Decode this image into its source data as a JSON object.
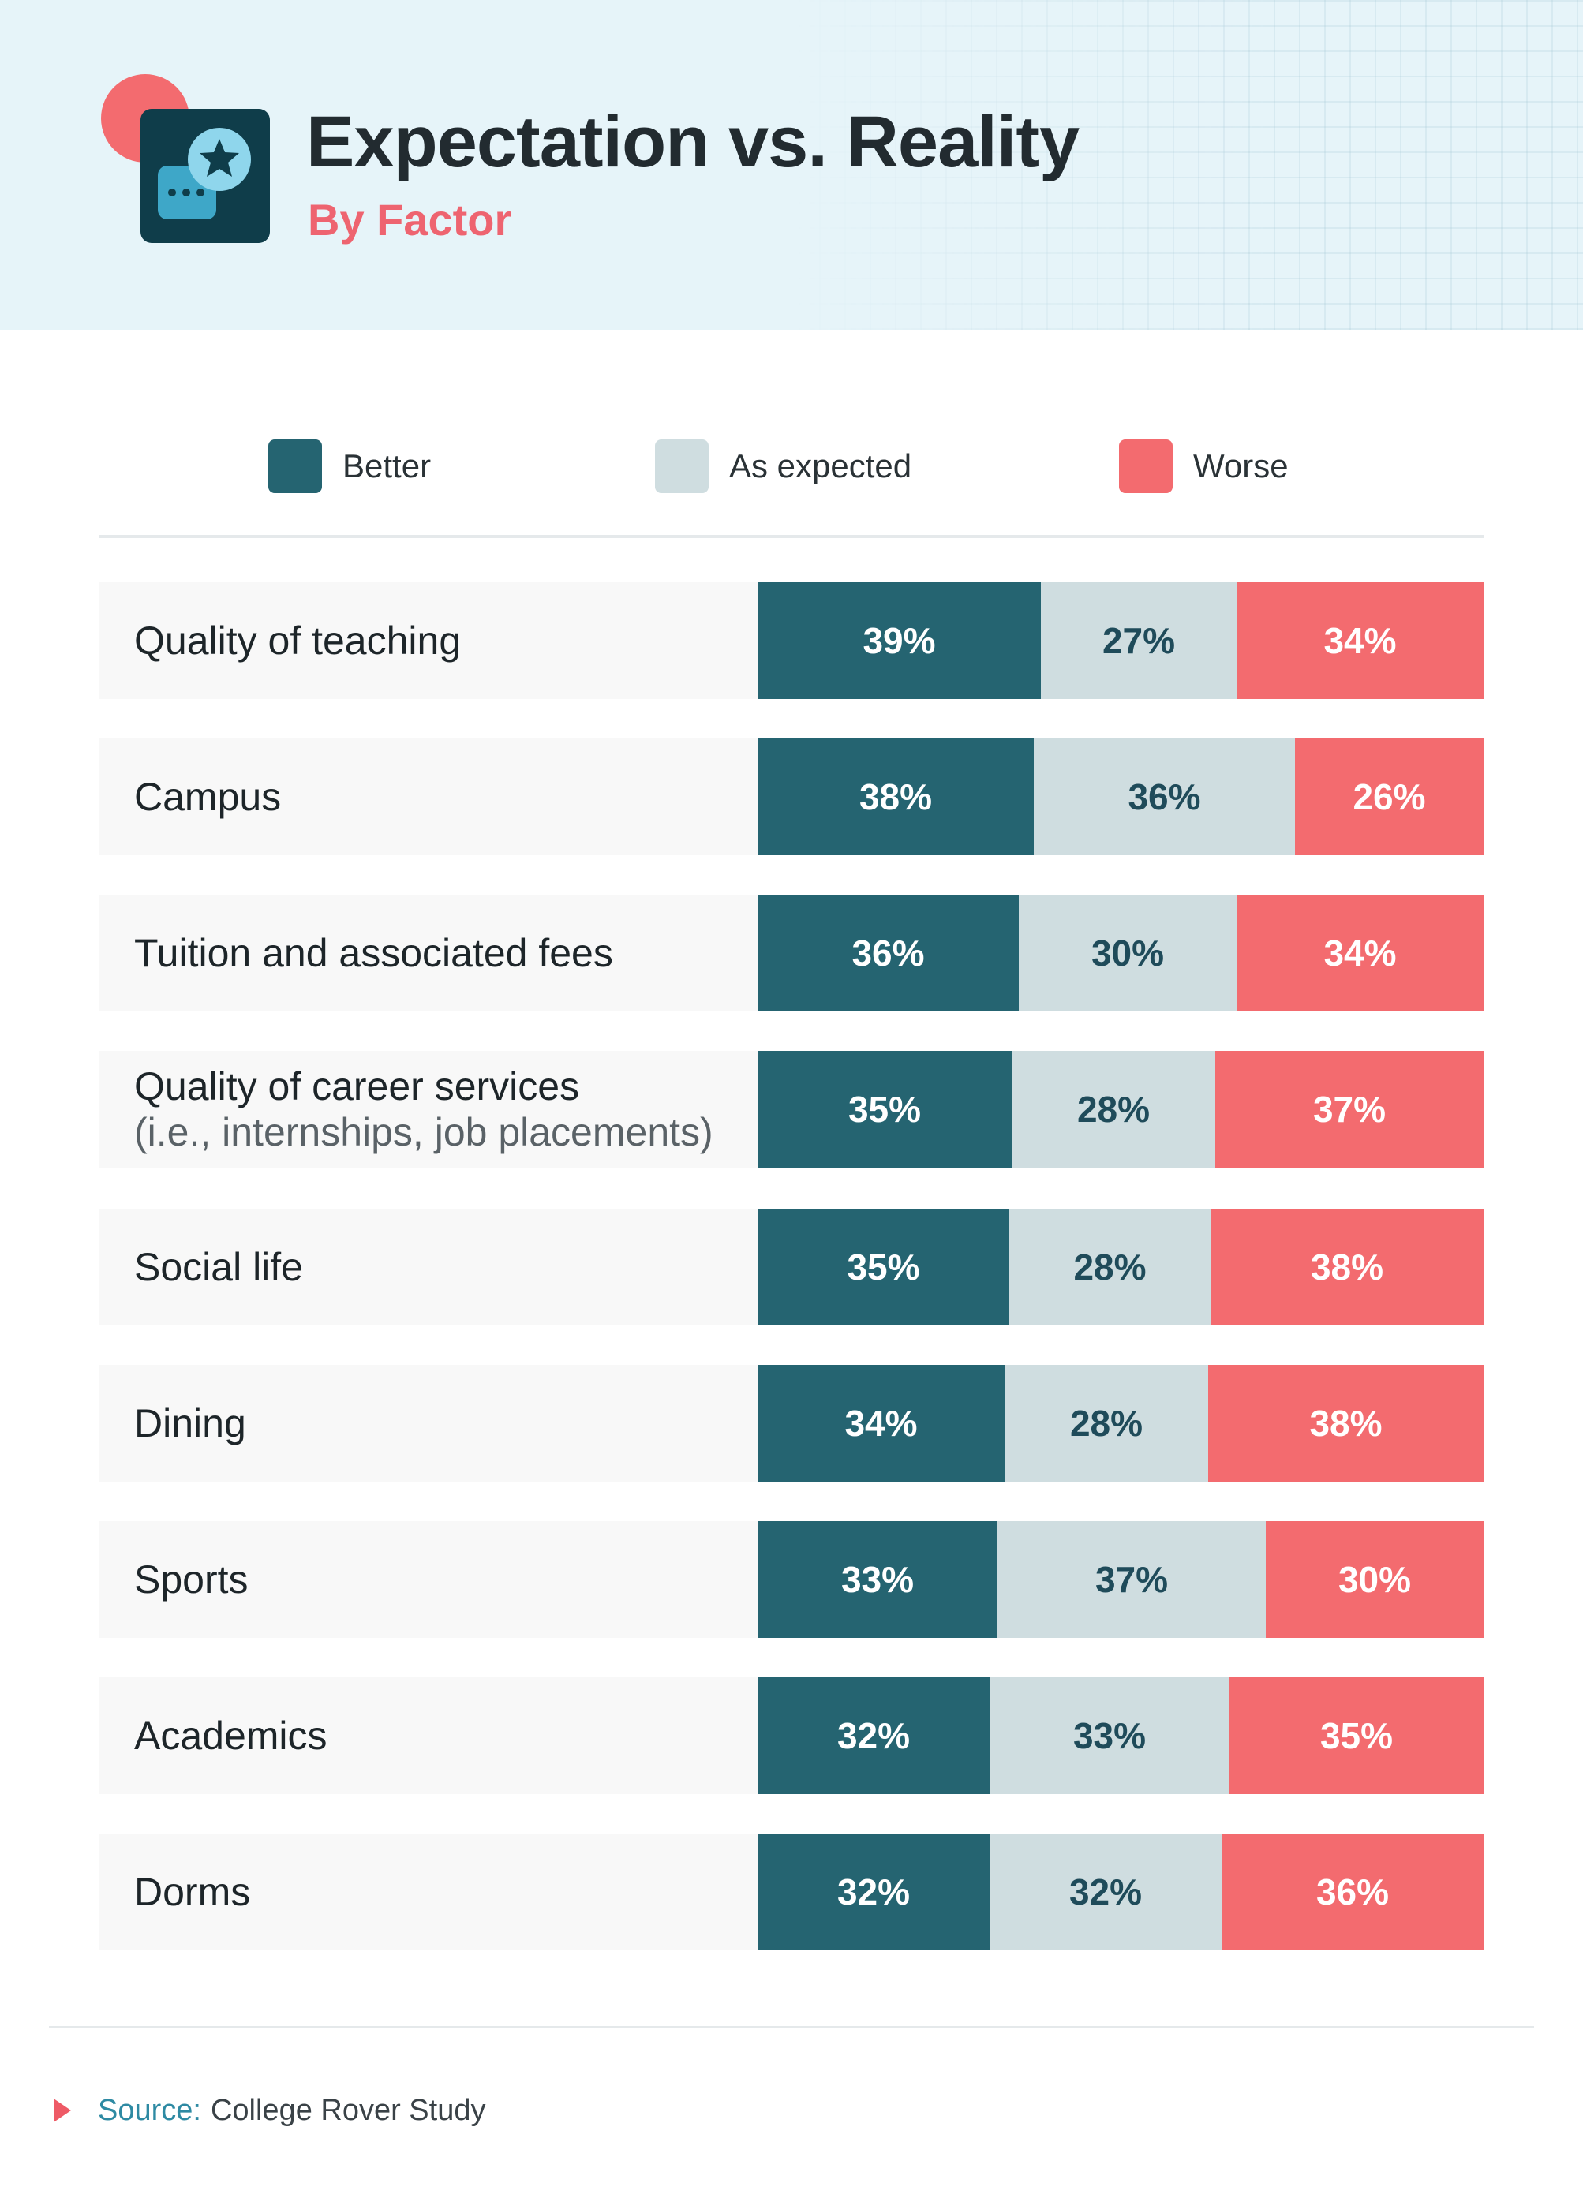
{
  "header": {
    "title": "Expectation vs. Reality",
    "subtitle": "By Factor",
    "logo_icon": "chat-star-icon"
  },
  "colors": {
    "better": "#256471",
    "as_expected": "#cfdde0",
    "worse": "#f36b6f",
    "accent": "#ee6470",
    "header_bg": "#e6f4f9"
  },
  "legend": [
    {
      "label": "Better",
      "key": "better"
    },
    {
      "label": "As expected",
      "key": "expected"
    },
    {
      "label": "Worse",
      "key": "worse"
    }
  ],
  "chart_data": {
    "type": "bar",
    "orientation": "horizontal",
    "stacked": true,
    "title": "Expectation vs. Reality",
    "subtitle": "By Factor",
    "categories": [
      {
        "label": "Quality of teaching",
        "sublabel": ""
      },
      {
        "label": "Campus",
        "sublabel": ""
      },
      {
        "label": "Tuition and associated fees",
        "sublabel": ""
      },
      {
        "label": "Quality of career services",
        "sublabel": "(i.e., internships, job placements)"
      },
      {
        "label": "Social life",
        "sublabel": ""
      },
      {
        "label": "Dining",
        "sublabel": ""
      },
      {
        "label": "Sports",
        "sublabel": ""
      },
      {
        "label": "Academics",
        "sublabel": ""
      },
      {
        "label": "Dorms",
        "sublabel": ""
      }
    ],
    "series": [
      {
        "name": "Better",
        "key": "better",
        "values": [
          39,
          38,
          36,
          35,
          35,
          34,
          33,
          32,
          32
        ]
      },
      {
        "name": "As expected",
        "key": "expected",
        "values": [
          27,
          36,
          30,
          28,
          28,
          28,
          37,
          33,
          32
        ]
      },
      {
        "name": "Worse",
        "key": "worse",
        "values": [
          34,
          26,
          34,
          37,
          38,
          38,
          30,
          35,
          36
        ]
      }
    ],
    "value_suffix": "%",
    "legend_position": "top"
  },
  "footer": {
    "source_label": "Source:",
    "source_value": "College Rover Study"
  }
}
